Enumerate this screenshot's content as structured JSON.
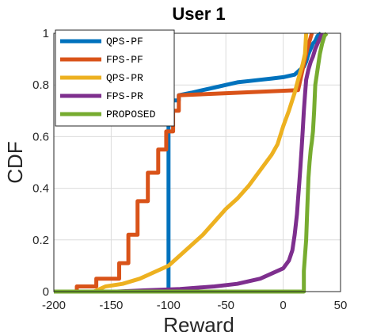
{
  "chart_data": {
    "type": "line",
    "title": "User 1",
    "xlabel": "Reward",
    "ylabel": "CDF",
    "xlim": [
      -200,
      50
    ],
    "ylim": [
      0,
      1
    ],
    "xticks": [
      -200,
      -150,
      -100,
      -50,
      0,
      50
    ],
    "yticks": [
      0,
      0.2,
      0.4,
      0.6,
      0.8,
      1
    ],
    "grid": true,
    "legend_position": "top-left",
    "series": [
      {
        "name": "QPS-PF",
        "color": "#0072BD",
        "x": [
          -200,
          -100,
          -100,
          -91,
          -91,
          -80,
          -70,
          -60,
          -50,
          -40,
          -30,
          -20,
          -10,
          0,
          10,
          15,
          18,
          20,
          22,
          24,
          26,
          28,
          30,
          33
        ],
        "y": [
          0,
          0,
          0.74,
          0.74,
          0.76,
          0.77,
          0.78,
          0.79,
          0.8,
          0.81,
          0.815,
          0.82,
          0.825,
          0.83,
          0.84,
          0.86,
          0.87,
          0.89,
          0.92,
          0.94,
          0.96,
          0.97,
          0.99,
          1
        ]
      },
      {
        "name": "FPS-PF",
        "color": "#D95319",
        "x": [
          -200,
          -180,
          -180,
          -163,
          -163,
          -143,
          -143,
          -135,
          -135,
          -127,
          -127,
          -118,
          -118,
          -109,
          -109,
          -102,
          -102,
          -96,
          -96,
          -91,
          -91,
          13,
          15,
          17,
          19,
          21,
          23,
          25
        ],
        "y": [
          0,
          0,
          0.02,
          0.02,
          0.05,
          0.05,
          0.11,
          0.11,
          0.22,
          0.22,
          0.35,
          0.35,
          0.46,
          0.46,
          0.55,
          0.55,
          0.62,
          0.62,
          0.7,
          0.7,
          0.76,
          0.78,
          0.82,
          0.86,
          0.9,
          0.94,
          0.97,
          1
        ]
      },
      {
        "name": "QPS-PR",
        "color": "#EDB120",
        "x": [
          -200,
          -165,
          -155,
          -140,
          -125,
          -110,
          -100,
          -90,
          -80,
          -70,
          -60,
          -50,
          -40,
          -30,
          -20,
          -10,
          -5,
          0,
          5,
          10,
          13,
          15,
          17,
          19,
          20
        ],
        "y": [
          0,
          0,
          0.02,
          0.03,
          0.05,
          0.08,
          0.1,
          0.14,
          0.18,
          0.22,
          0.27,
          0.32,
          0.36,
          0.41,
          0.47,
          0.53,
          0.57,
          0.64,
          0.7,
          0.77,
          0.82,
          0.85,
          0.88,
          0.92,
          1
        ]
      },
      {
        "name": "FPS-PR",
        "color": "#7E2F8E",
        "x": [
          -200,
          -145,
          -120,
          -90,
          -60,
          -40,
          -20,
          -10,
          0,
          5,
          8,
          10,
          12,
          13,
          14,
          15,
          16,
          17,
          18,
          19,
          20,
          22,
          24,
          26,
          28,
          30,
          32,
          34
        ],
        "y": [
          0,
          0,
          0.005,
          0.01,
          0.02,
          0.03,
          0.05,
          0.07,
          0.09,
          0.12,
          0.16,
          0.22,
          0.3,
          0.36,
          0.42,
          0.48,
          0.55,
          0.62,
          0.7,
          0.76,
          0.82,
          0.86,
          0.89,
          0.91,
          0.94,
          0.96,
          0.98,
          1
        ]
      },
      {
        "name": "PROPOSED",
        "color": "#77AC30",
        "x": [
          -200,
          0,
          0,
          18,
          18,
          20,
          21,
          22,
          23,
          24,
          25,
          26,
          27,
          28,
          30,
          32,
          34,
          36,
          38
        ],
        "y": [
          0,
          0,
          0,
          0,
          0.08,
          0.2,
          0.32,
          0.44,
          0.5,
          0.55,
          0.58,
          0.62,
          0.7,
          0.8,
          0.86,
          0.92,
          0.96,
          0.99,
          1
        ]
      }
    ]
  }
}
